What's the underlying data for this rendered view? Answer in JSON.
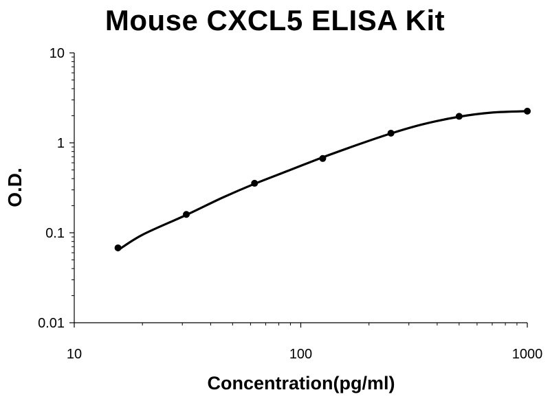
{
  "chart_data": {
    "type": "line",
    "title": "Mouse CXCL5 ELISA Kit",
    "xlabel": "Concentration(pg/ml)",
    "ylabel": "O.D.",
    "x_scale": "log",
    "y_scale": "log",
    "xlim": [
      10,
      1000
    ],
    "ylim": [
      0.01,
      10
    ],
    "x_ticks": [
      {
        "value": 10,
        "label": "10"
      },
      {
        "value": 100,
        "label": "100"
      },
      {
        "value": 1000,
        "label": "1000"
      }
    ],
    "y_ticks": [
      {
        "value": 0.01,
        "label": "0.01"
      },
      {
        "value": 0.1,
        "label": "0.1"
      },
      {
        "value": 1,
        "label": "1"
      },
      {
        "value": 10,
        "label": "10"
      }
    ],
    "grid": false,
    "legend": "none",
    "series": [
      {
        "points": [
          {
            "x": 15.6,
            "y": 0.068
          },
          {
            "x": 31.25,
            "y": 0.16
          },
          {
            "x": 62.5,
            "y": 0.355
          },
          {
            "x": 125,
            "y": 0.67
          },
          {
            "x": 250,
            "y": 1.28
          },
          {
            "x": 500,
            "y": 1.97
          },
          {
            "x": 1000,
            "y": 2.25
          }
        ],
        "fit_curve": [
          {
            "x": 15.6,
            "y": 0.064
          },
          {
            "x": 20,
            "y": 0.095
          },
          {
            "x": 31.25,
            "y": 0.158
          },
          {
            "x": 45,
            "y": 0.245
          },
          {
            "x": 62.5,
            "y": 0.35
          },
          {
            "x": 90,
            "y": 0.5
          },
          {
            "x": 125,
            "y": 0.69
          },
          {
            "x": 180,
            "y": 0.96
          },
          {
            "x": 250,
            "y": 1.27
          },
          {
            "x": 350,
            "y": 1.62
          },
          {
            "x": 500,
            "y": 1.95
          },
          {
            "x": 700,
            "y": 2.17
          },
          {
            "x": 1000,
            "y": 2.25
          }
        ]
      }
    ],
    "colors": {
      "line": "#000000",
      "marker": "#000000",
      "axis": "#000000"
    }
  }
}
